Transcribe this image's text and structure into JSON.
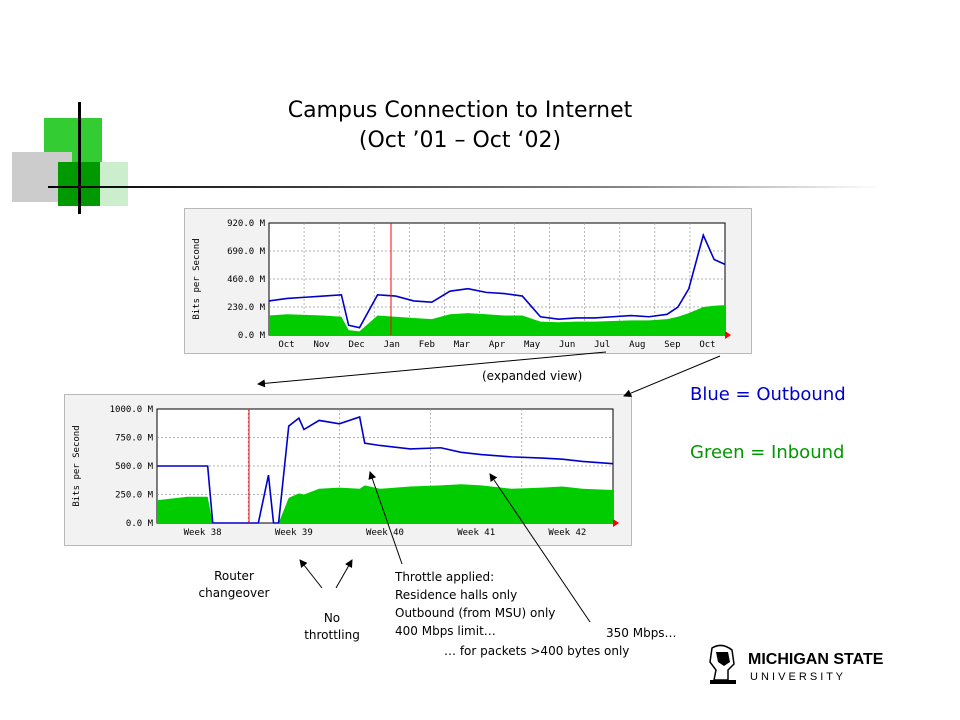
{
  "slide": {
    "title_line1": "Campus Connection to Internet",
    "title_line2": "(Oct ’01 – Oct ‘02)",
    "expanded_label": "(expanded view)",
    "legend_blue": "Blue = Outbound",
    "legend_green": "Green = Inbound",
    "annotations": {
      "router": [
        "Router",
        "changeover"
      ],
      "no_throttling": [
        "No",
        "throttling"
      ],
      "throttle": [
        "Throttle applied:",
        "Residence halls only",
        "Outbound (from MSU) only",
        "400 Mbps limit…"
      ],
      "mbps350": "350 Mbps…",
      "packets": "… for packets >400 bytes only"
    },
    "logo": {
      "line1": "MICHIGAN STATE",
      "line2": "U N I V E R S I T Y"
    }
  },
  "colors": {
    "outbound": "#0000cc",
    "inbound": "#00cc00",
    "marker": "#ff0000",
    "legend_green": "#009900"
  },
  "chart_data": [
    {
      "type": "area",
      "ylabel": "Bits per Second",
      "y_ticks": [
        "920.0 M",
        "690.0 M",
        "460.0 M",
        "230.0 M",
        "0.0 M"
      ],
      "ylim": [
        0,
        920
      ],
      "x_ticks": [
        "Oct",
        "Nov",
        "Dec",
        "Jan",
        "Feb",
        "Mar",
        "Apr",
        "May",
        "Jun",
        "Jul",
        "Aug",
        "Sep",
        "Oct"
      ],
      "grid": true,
      "x": [
        0,
        0.5,
        1,
        1.5,
        2,
        2.2,
        2.5,
        3,
        3.5,
        4,
        4.5,
        5,
        5.5,
        6,
        6.5,
        7,
        7.5,
        8,
        8.5,
        9,
        9.5,
        10,
        10.5,
        11,
        11.3,
        11.6,
        12,
        12.3,
        12.6
      ],
      "series": [
        {
          "name": "Blue = Outbound",
          "values": [
            280,
            300,
            310,
            320,
            330,
            80,
            60,
            330,
            320,
            280,
            270,
            360,
            380,
            350,
            340,
            320,
            150,
            130,
            140,
            140,
            150,
            160,
            150,
            170,
            230,
            380,
            820,
            620,
            580
          ]
        },
        {
          "name": "Green = Inbound",
          "values": [
            160,
            170,
            165,
            160,
            150,
            40,
            30,
            160,
            150,
            140,
            130,
            170,
            180,
            170,
            160,
            160,
            110,
            105,
            110,
            110,
            115,
            120,
            120,
            130,
            150,
            180,
            230,
            240,
            245
          ]
        }
      ]
    },
    {
      "type": "area",
      "ylabel": "Bits per Second",
      "y_ticks": [
        "1000.0 M",
        "750.0 M",
        "500.0 M",
        "250.0 M",
        "0.0 M"
      ],
      "ylim": [
        0,
        1000
      ],
      "x_ticks": [
        "Week 38",
        "Week 39",
        "Week 40",
        "Week 41",
        "Week 42"
      ],
      "grid": true,
      "x": [
        0,
        0.3,
        0.5,
        0.55,
        1.0,
        1.1,
        1.15,
        1.2,
        1.3,
        1.4,
        1.45,
        1.6,
        1.8,
        2.0,
        2.05,
        2.2,
        2.5,
        2.8,
        3.0,
        3.2,
        3.5,
        3.8,
        4.0,
        4.2,
        4.5
      ],
      "series": [
        {
          "name": "Blue = Outbound",
          "values": [
            500,
            500,
            500,
            0,
            0,
            420,
            0,
            0,
            850,
            920,
            820,
            900,
            870,
            930,
            700,
            680,
            650,
            660,
            620,
            600,
            580,
            570,
            560,
            540,
            520
          ]
        },
        {
          "name": "Green = Inbound",
          "values": [
            200,
            230,
            230,
            0,
            0,
            0,
            0,
            0,
            220,
            260,
            250,
            300,
            310,
            300,
            330,
            300,
            320,
            330,
            340,
            330,
            300,
            310,
            320,
            300,
            290
          ]
        }
      ]
    }
  ]
}
